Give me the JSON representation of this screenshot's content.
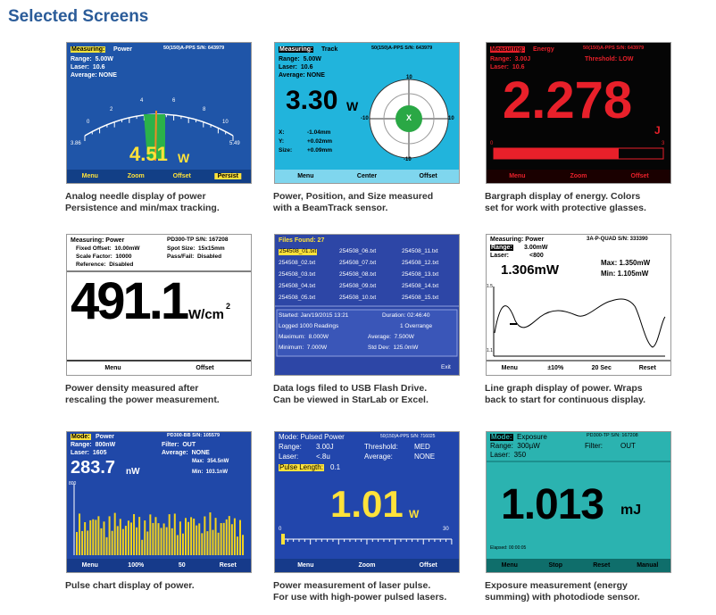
{
  "title": "Selected Screens",
  "panels": [
    {
      "screen": [
        "Measuring:",
        "Power",
        "50(150)A-PPS S/N: 643979",
        "Range:  5.00W",
        "Laser:  10.6",
        "Average: NONE",
        "0",
        "2",
        "4",
        "6",
        "8",
        "10",
        "3.86",
        "5.49",
        "4.51",
        "W",
        "Menu",
        "Zoom",
        "Offset",
        "Persist"
      ],
      "caption": [
        "Analog needle display of power",
        "Persistence and min/max tracking."
      ]
    },
    {
      "screen": [
        "Measuring:",
        "Track",
        "50(150)A-PPS S/N: 643979",
        "Range:  5.00W",
        "Laser:  10.6",
        "Average: NONE",
        "3.30",
        "W",
        "10",
        "-10",
        "10",
        "-10",
        "X",
        "X:",
        "-1.04mm",
        "Y:",
        "+0.02mm",
        "Size:",
        "+0.09mm",
        "Menu",
        "Center",
        "Offset"
      ],
      "caption": [
        "Power, Position, and Size measured",
        "with a BeamTrack sensor."
      ]
    },
    {
      "screen": [
        "Measuring:",
        "Energy",
        "50(150)A-PPS S/N: 643979",
        "Range:  3.00J",
        "Threshold: LOW",
        "Laser:  10.6",
        "2.278",
        "J",
        "0",
        "3",
        "Menu",
        "Zoom",
        "Offset"
      ],
      "caption": [
        "Bargraph display of energy. Colors",
        "set for work with protective glasses."
      ]
    },
    {
      "screen": [
        "Measuring: Power",
        "PD300-TP S/N: 167208",
        "Fixed Offset:  10.00mW",
        "Spot Size:  15x15mm",
        "Scale Factor:  10000",
        "Pass/Fail:  Disabled",
        "Reference:  Disabled",
        "491.1",
        "W/cm",
        "2",
        "Menu",
        "Offset"
      ],
      "caption": [
        "Power density measured after",
        "rescaling the power measurement."
      ]
    },
    {
      "screen": [
        "Files Found: 27",
        "254508_01.txt",
        "254508_02.txt",
        "254508_03.txt",
        "254508_04.txt",
        "254508_05.txt",
        "254508_06.txt",
        "254508_07.txt",
        "254508_08.txt",
        "254508_09.txt",
        "254508_10.txt",
        "254508_11.txt",
        "254508_12.txt",
        "254508_13.txt",
        "254508_14.txt",
        "254508_15.txt",
        "Started: Jan/19/2015 13:21",
        "Duration: 02:46:40",
        "Logged 1000 Readings",
        "1 Overrange",
        "Maximum:  8.000W",
        "Average:  7.500W",
        "Minimum:  7.000W",
        "Std Dev:  125.0mW",
        "Exit"
      ],
      "caption": [
        "Data logs filed to USB Flash Drive.",
        "Can be viewed in StarLab or Excel."
      ]
    },
    {
      "screen": [
        "Measuring: Power",
        "3A-P-QUAD S/N: 333390",
        "Range:",
        "3.00mW",
        "Laser:",
        "<800",
        "1.306mW",
        "Max: 1.350mW",
        "Min: 1.105mW",
        "1.5",
        "1.1",
        "Menu",
        "±10%",
        "20 Sec",
        "Reset"
      ],
      "caption": [
        "Line graph display of power. Wraps",
        "back to start for continuous display."
      ]
    },
    {
      "screen": [
        "Mode:",
        "Power",
        "PD300-BB S/N: 105579",
        "Range:  800nW",
        "Filter:  OUT",
        "Laser:  1605",
        "Average:  NONE",
        "283.7",
        "nW",
        "Max:  354.5nW",
        "Min:  103.1nW",
        "800",
        "Menu",
        "100%",
        "50",
        "Reset"
      ],
      "caption": [
        "Pulse chart display of power."
      ]
    },
    {
      "screen": [
        "Mode: Pulsed Power",
        "50(150)A-PPS S/N: 716025",
        "Range:",
        "3.00J",
        "Threshold:",
        "MED",
        "Laser:",
        "<.8u",
        "Average:",
        "NONE",
        "Pulse Length:",
        "0.1",
        "1.01",
        "W",
        "0",
        "30",
        "Menu",
        "Zoom",
        "Offset"
      ],
      "caption": [
        "Power measurement of laser pulse.",
        "For use with high-power pulsed lasers."
      ]
    },
    {
      "screen": [
        "Mode:",
        "Exposure",
        "PD300-TP S/N: 167208",
        "Range:  300µW",
        "Filter:",
        "OUT",
        "Laser:  350",
        "1.013",
        "mJ",
        "Elapsed: 00:00:05",
        "Menu",
        "Stop",
        "Reset",
        "Manual"
      ],
      "caption": [
        "Exposure measurement (energy",
        "summing) with photodiode sensor."
      ]
    }
  ]
}
